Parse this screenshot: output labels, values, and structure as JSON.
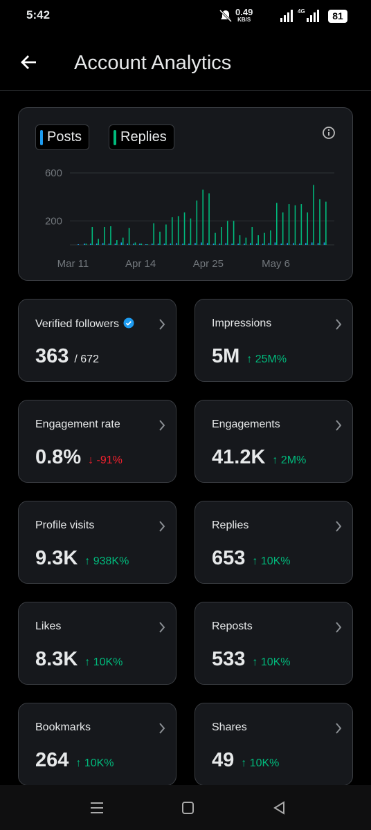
{
  "status_bar": {
    "time": "5:42",
    "speed": "0.49",
    "speed_unit": "KB/S",
    "network": "4G",
    "battery": "81"
  },
  "header": {
    "title": "Account Analytics"
  },
  "chart_data": {
    "type": "bar",
    "categories": [
      "Mar 11",
      null,
      null,
      null,
      null,
      null,
      null,
      null,
      null,
      null,
      null,
      "Apr 14",
      null,
      null,
      null,
      null,
      null,
      null,
      null,
      null,
      null,
      null,
      "Apr 25",
      null,
      null,
      null,
      null,
      null,
      null,
      null,
      null,
      null,
      null,
      "May 6",
      null,
      null,
      null,
      null,
      null,
      null,
      null,
      null,
      null
    ],
    "series": [
      {
        "name": "Posts",
        "color": "#1d9bf0",
        "values": [
          0,
          5,
          10,
          10,
          10,
          15,
          10,
          10,
          20,
          10,
          10,
          10,
          5,
          10,
          10,
          10,
          10,
          15,
          10,
          10,
          15,
          20,
          15,
          10,
          10,
          15,
          10,
          10,
          10,
          15,
          10,
          10,
          15,
          20,
          10,
          15,
          15,
          10,
          15,
          20,
          15,
          20,
          0
        ]
      },
      {
        "name": "Replies",
        "color": "#00ba7c",
        "values": [
          0,
          0,
          10,
          150,
          50,
          150,
          155,
          40,
          60,
          140,
          20,
          10,
          5,
          180,
          110,
          170,
          230,
          240,
          270,
          220,
          370,
          460,
          430,
          100,
          150,
          200,
          200,
          80,
          60,
          150,
          80,
          100,
          120,
          350,
          270,
          340,
          330,
          340,
          270,
          500,
          380,
          360,
          0
        ]
      }
    ],
    "ylim": [
      0,
      600
    ],
    "yticks": [
      200,
      600
    ],
    "grid": true
  },
  "metrics": [
    {
      "label": "Verified followers",
      "value": "363",
      "total": "/ 672"
    },
    {
      "label": "Impressions",
      "value": "5M",
      "change": "↑ 25M%",
      "trend": "up"
    },
    {
      "label": "Engagement rate",
      "value": "0.8%",
      "change": "↓ -91%",
      "trend": "down"
    },
    {
      "label": "Engagements",
      "value": "41.2K",
      "change": "↑ 2M%",
      "trend": "up"
    },
    {
      "label": "Profile visits",
      "value": "9.3K",
      "change": "↑ 938K%",
      "trend": "up"
    },
    {
      "label": "Replies",
      "value": "653",
      "change": "↑ 10K%",
      "trend": "up"
    },
    {
      "label": "Likes",
      "value": "8.3K",
      "change": "↑ 10K%",
      "trend": "up"
    },
    {
      "label": "Reposts",
      "value": "533",
      "change": "↑ 10K%",
      "trend": "up"
    },
    {
      "label": "Bookmarks",
      "value": "264",
      "change": "↑ 10K%",
      "trend": "up"
    },
    {
      "label": "Shares",
      "value": "49",
      "change": "↑ 10K%",
      "trend": "up"
    }
  ]
}
